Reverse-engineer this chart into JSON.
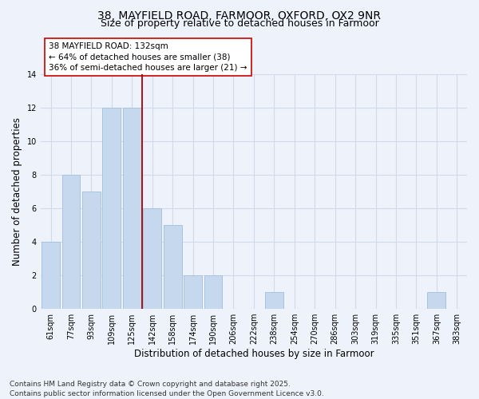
{
  "title_line1": "38, MAYFIELD ROAD, FARMOOR, OXFORD, OX2 9NR",
  "title_line2": "Size of property relative to detached houses in Farmoor",
  "xlabel": "Distribution of detached houses by size in Farmoor",
  "ylabel": "Number of detached properties",
  "categories": [
    "61sqm",
    "77sqm",
    "93sqm",
    "109sqm",
    "125sqm",
    "142sqm",
    "158sqm",
    "174sqm",
    "190sqm",
    "206sqm",
    "222sqm",
    "238sqm",
    "254sqm",
    "270sqm",
    "286sqm",
    "303sqm",
    "319sqm",
    "335sqm",
    "351sqm",
    "367sqm",
    "383sqm"
  ],
  "values": [
    4,
    8,
    7,
    12,
    12,
    6,
    5,
    2,
    2,
    0,
    0,
    1,
    0,
    0,
    0,
    0,
    0,
    0,
    0,
    1,
    0
  ],
  "bar_color": "#c5d8ed",
  "bar_edge_color": "#a8c4de",
  "grid_color": "#d0daea",
  "background_color": "#eef2fa",
  "vline_x_index": 4.5,
  "vline_color": "#aa0000",
  "annotation_text": "38 MAYFIELD ROAD: 132sqm\n← 64% of detached houses are smaller (38)\n36% of semi-detached houses are larger (21) →",
  "annotation_box_color": "#ffffff",
  "annotation_box_edge": "#cc0000",
  "ylim": [
    0,
    14
  ],
  "yticks": [
    0,
    2,
    4,
    6,
    8,
    10,
    12,
    14
  ],
  "footnote": "Contains HM Land Registry data © Crown copyright and database right 2025.\nContains public sector information licensed under the Open Government Licence v3.0.",
  "title_fontsize": 10,
  "subtitle_fontsize": 9,
  "axis_label_fontsize": 8.5,
  "tick_fontsize": 7,
  "annotation_fontsize": 7.5,
  "footnote_fontsize": 6.5
}
